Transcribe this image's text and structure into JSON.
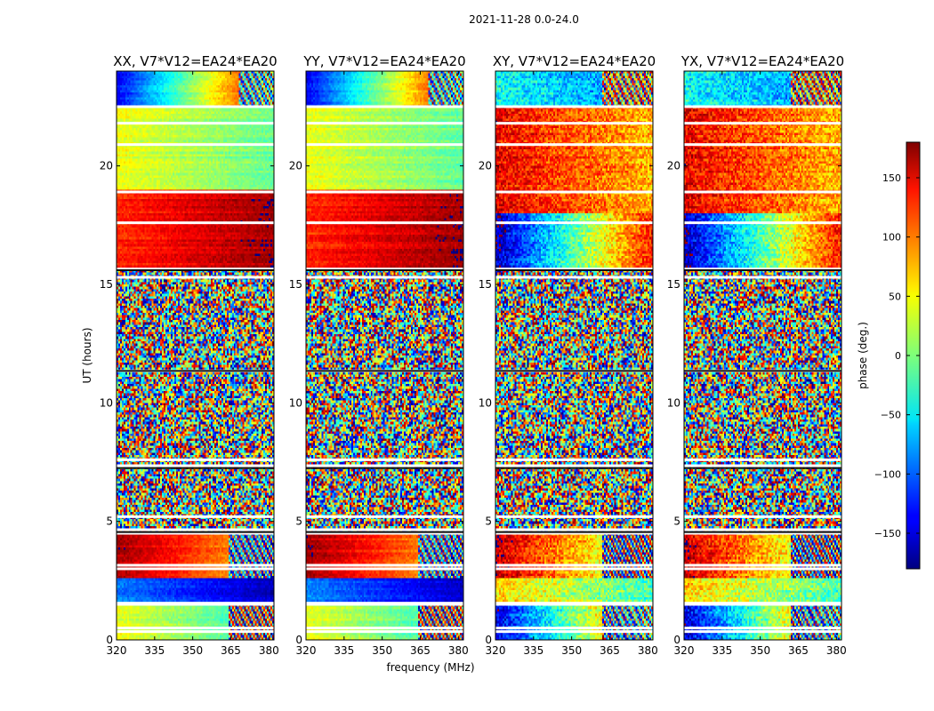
{
  "chart_data": {
    "type": "heatmap",
    "suptitle": "2021-11-28 0.0-24.0",
    "xlabel": "frequency (MHz)",
    "ylabel": "UT (hours)",
    "xlim": [
      320,
      382
    ],
    "ylim": [
      0,
      24
    ],
    "xticks": [
      320,
      335,
      350,
      365,
      380
    ],
    "yticks": [
      0,
      5,
      10,
      15,
      20
    ],
    "colorbar": {
      "label": "phase (deg.)",
      "range": [
        -180,
        180
      ],
      "ticks": [
        150,
        100,
        50,
        0,
        -50,
        -100,
        -150
      ],
      "tick_labels": [
        "150",
        "100",
        "50",
        "0",
        "−50",
        "−100",
        "−150"
      ],
      "colormap": "jet"
    },
    "noise_bands_hours": [
      [
        4.6,
        7.2
      ],
      [
        7.5,
        11.3
      ],
      [
        11.4,
        15.6
      ]
    ],
    "flagged_rows_hours": [
      0.35,
      0.5,
      1.5,
      1.55,
      3.0,
      3.15,
      4.5,
      4.65,
      5.2,
      7.35,
      7.6,
      11.35,
      15.3,
      15.65,
      17.6,
      18.9,
      20.9,
      21.8,
      22.5
    ],
    "panels": [
      {
        "title": "XX, V7*V12=EA24*EA20",
        "pol": "XX",
        "day_bands": [
          {
            "range": [
              0,
              1.5
            ],
            "phase_start": 40,
            "phase_end": -40,
            "wrap_freq": 364
          },
          {
            "range": [
              1.6,
              2.6
            ],
            "phase_start": -90,
            "phase_end": -160
          },
          {
            "range": [
              2.6,
              4.5
            ],
            "phase_start": 170,
            "phase_end": 60,
            "wrap_freq": 364
          },
          {
            "range": [
              15.7,
              19.0
            ],
            "phase_start": 120,
            "phase_end": 170
          },
          {
            "range": [
              19.0,
              22.5
            ],
            "phase_start": 40,
            "phase_end": -10
          },
          {
            "range": [
              22.5,
              24.0
            ],
            "phase_start": -140,
            "phase_end": 160,
            "wrap_freq": 368
          }
        ]
      },
      {
        "title": "YY, V7*V12=EA24*EA20",
        "pol": "YY",
        "day_bands": [
          {
            "range": [
              0,
              1.5
            ],
            "phase_start": 40,
            "phase_end": -40,
            "wrap_freq": 364
          },
          {
            "range": [
              1.6,
              2.6
            ],
            "phase_start": -90,
            "phase_end": -160
          },
          {
            "range": [
              2.6,
              4.5
            ],
            "phase_start": 170,
            "phase_end": 60,
            "wrap_freq": 364
          },
          {
            "range": [
              15.7,
              19.0
            ],
            "phase_start": 120,
            "phase_end": 170
          },
          {
            "range": [
              19.0,
              22.5
            ],
            "phase_start": 40,
            "phase_end": -10
          },
          {
            "range": [
              22.5,
              24.0
            ],
            "phase_start": -140,
            "phase_end": 160,
            "wrap_freq": 368
          }
        ]
      },
      {
        "title": "XY, V7*V12=EA24*EA20",
        "pol": "XY",
        "day_bands": [
          {
            "range": [
              0,
              1.5
            ],
            "phase_start": -150,
            "phase_end": 140,
            "wrap_freq": 362
          },
          {
            "range": [
              1.6,
              2.6
            ],
            "phase_start": 60,
            "phase_end": -20
          },
          {
            "range": [
              2.6,
              4.5
            ],
            "phase_start": 160,
            "phase_end": -10,
            "wrap_freq": 362
          },
          {
            "range": [
              15.7,
              18.0
            ],
            "phase_start": -160,
            "phase_end": 130
          },
          {
            "range": [
              18.0,
              22.5
            ],
            "phase_start": 140,
            "phase_end": 70
          },
          {
            "range": [
              22.5,
              24.0
            ],
            "phase_start": -40,
            "phase_end": -90,
            "wrap_freq": 362
          }
        ]
      },
      {
        "title": "YX, V7*V12=EA24*EA20",
        "pol": "YX",
        "day_bands": [
          {
            "range": [
              0,
              1.5
            ],
            "phase_start": -150,
            "phase_end": 140,
            "wrap_freq": 362
          },
          {
            "range": [
              1.6,
              2.6
            ],
            "phase_start": 60,
            "phase_end": -20
          },
          {
            "range": [
              2.6,
              4.5
            ],
            "phase_start": 160,
            "phase_end": -10,
            "wrap_freq": 362
          },
          {
            "range": [
              15.7,
              18.0
            ],
            "phase_start": -160,
            "phase_end": 130
          },
          {
            "range": [
              18.0,
              22.5
            ],
            "phase_start": 140,
            "phase_end": 70
          },
          {
            "range": [
              22.5,
              24.0
            ],
            "phase_start": -40,
            "phase_end": -90,
            "wrap_freq": 362
          }
        ]
      }
    ]
  }
}
